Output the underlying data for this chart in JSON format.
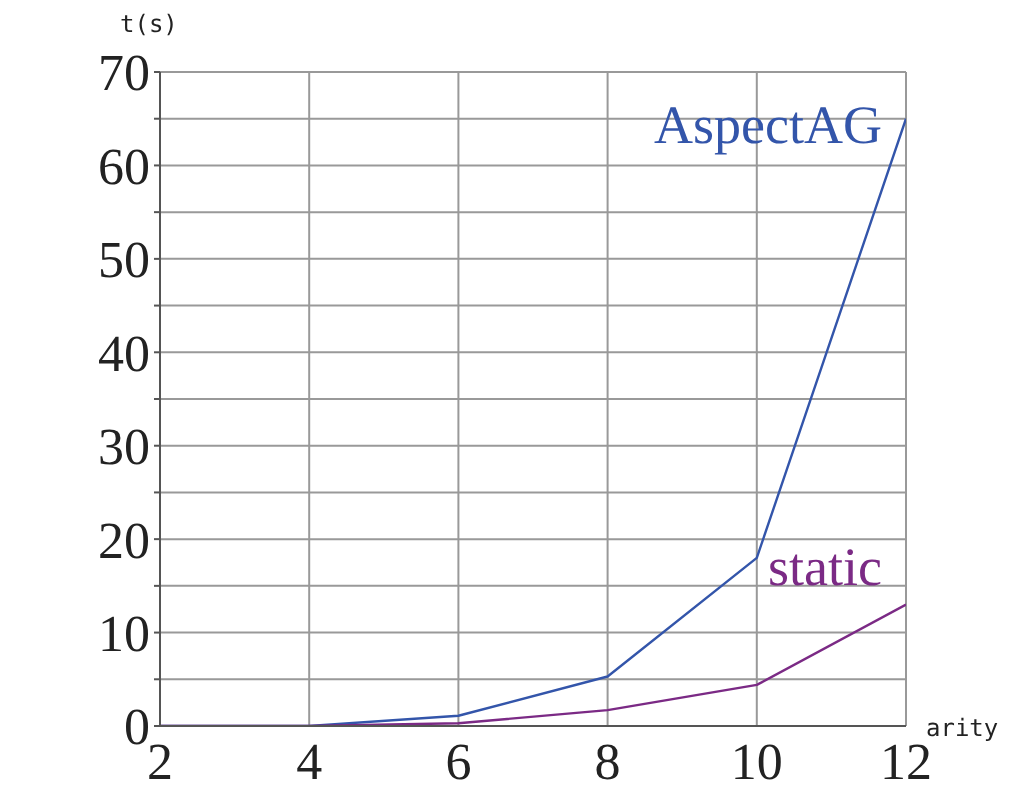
{
  "chart_data": {
    "type": "line",
    "xlabel": "arity",
    "ylabel": "t(s)",
    "x": [
      2,
      4,
      6,
      8,
      10,
      12
    ],
    "series": [
      {
        "name": "AspectAG",
        "color": "#3355aa",
        "values": [
          0,
          0,
          1.1,
          5.3,
          18,
          65
        ]
      },
      {
        "name": "static",
        "color": "#7b2a85",
        "values": [
          0,
          0,
          0.3,
          1.7,
          4.4,
          13
        ]
      }
    ],
    "xlim": [
      2,
      12
    ],
    "xticks": [
      2,
      4,
      6,
      8,
      10,
      12
    ],
    "ylim": [
      0,
      70
    ],
    "yticks": [
      0,
      {
        "value": 5,
        "label": null
      },
      10,
      {
        "value": 15,
        "label": null
      },
      20,
      {
        "value": 25,
        "label": null
      },
      30,
      {
        "value": 35,
        "label": null
      },
      40,
      {
        "value": 45,
        "label": null
      },
      50,
      {
        "value": 55,
        "label": null
      },
      60,
      {
        "value": 65,
        "label": null
      },
      70
    ],
    "grid": true,
    "legend": false,
    "marker": "none",
    "line_style": "solid"
  }
}
